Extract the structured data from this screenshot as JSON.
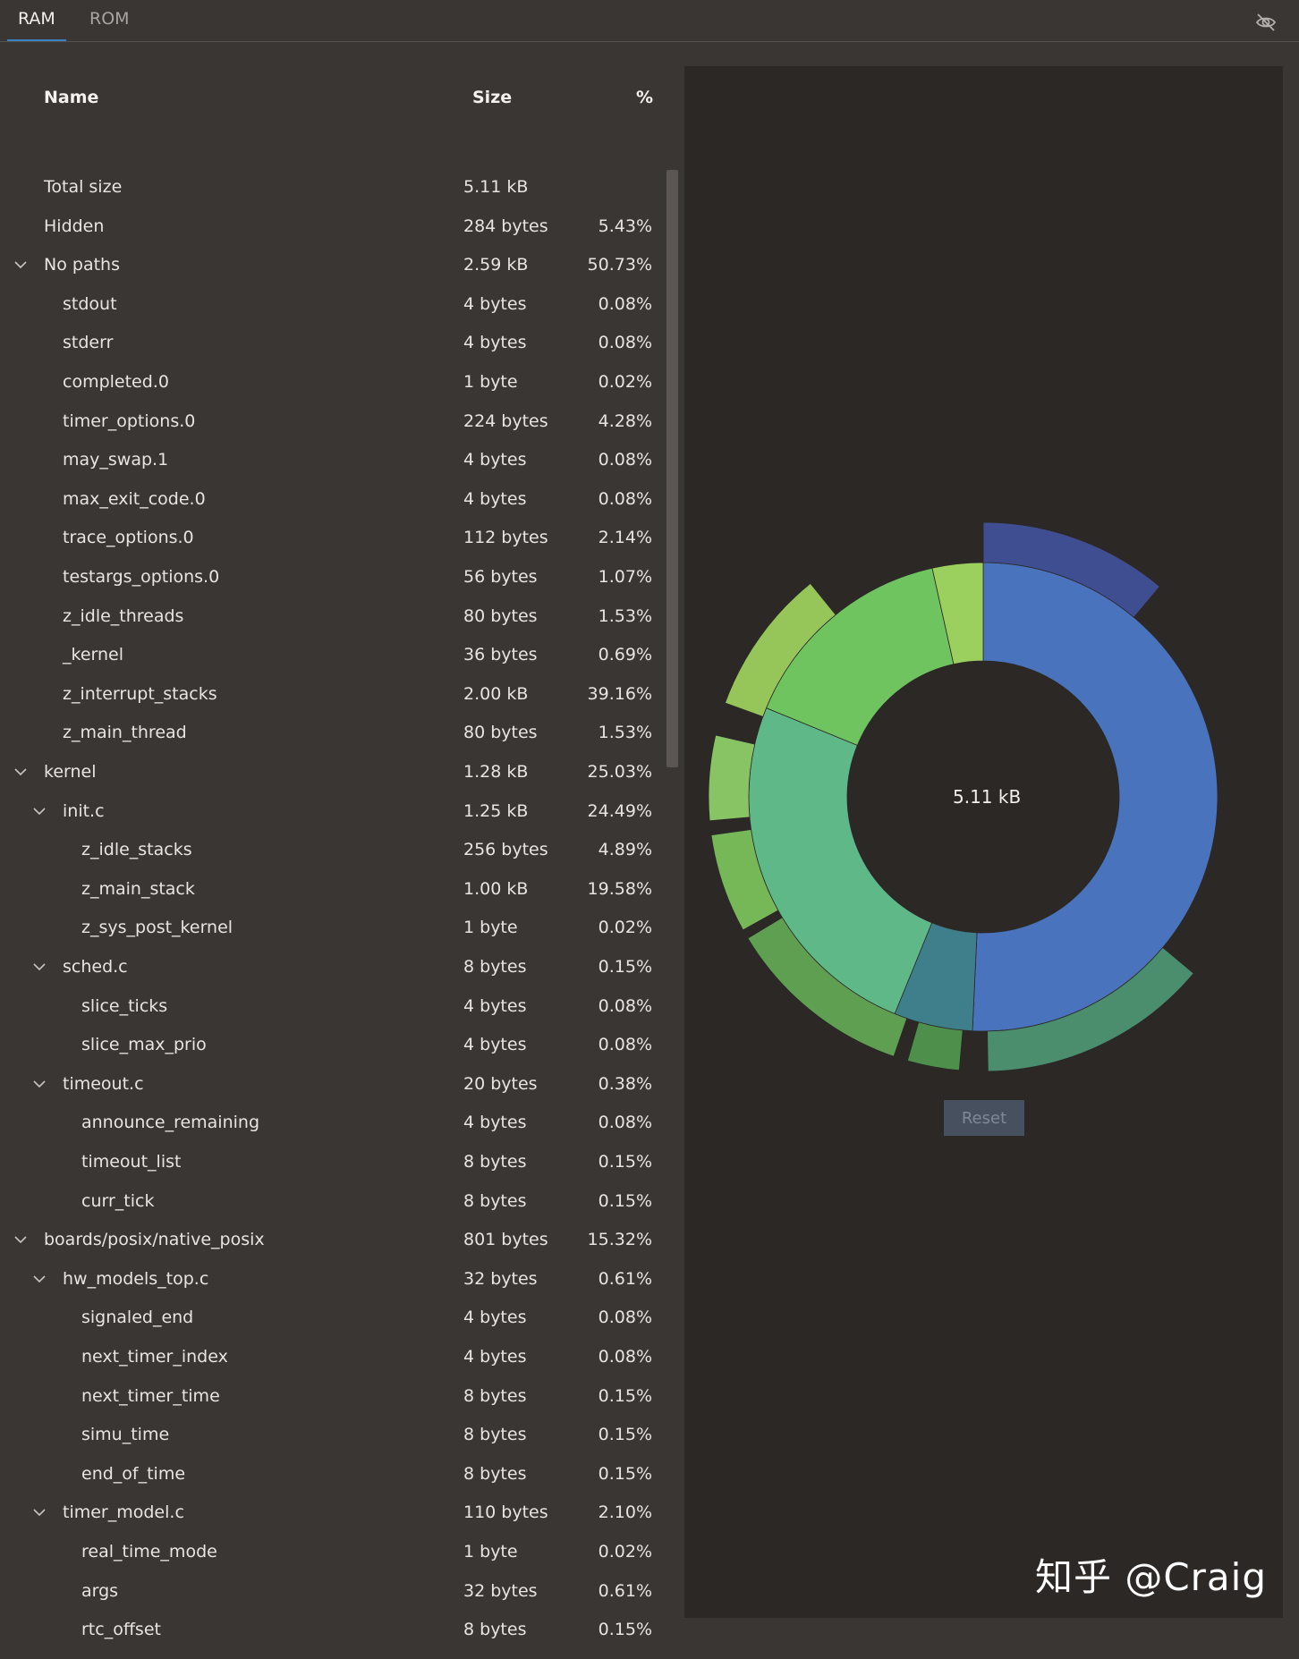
{
  "tabs": [
    {
      "label": "RAM"
    },
    {
      "label": "ROM"
    }
  ],
  "table": {
    "headers": {
      "name": "Name",
      "size": "Size",
      "pct": "%"
    },
    "rows": [
      {
        "name": "Total size",
        "size": "5.11 kB",
        "pct": "",
        "depth": 0,
        "expandable": false
      },
      {
        "name": "Hidden",
        "size": "284 bytes",
        "pct": "5.43%",
        "depth": 0,
        "expandable": false
      },
      {
        "name": "No paths",
        "size": "2.59 kB",
        "pct": "50.73%",
        "depth": 0,
        "expandable": true
      },
      {
        "name": "stdout",
        "size": "4 bytes",
        "pct": "0.08%",
        "depth": 1,
        "expandable": false
      },
      {
        "name": "stderr",
        "size": "4 bytes",
        "pct": "0.08%",
        "depth": 1,
        "expandable": false
      },
      {
        "name": "completed.0",
        "size": "1 byte",
        "pct": "0.02%",
        "depth": 1,
        "expandable": false
      },
      {
        "name": "timer_options.0",
        "size": "224 bytes",
        "pct": "4.28%",
        "depth": 1,
        "expandable": false
      },
      {
        "name": "may_swap.1",
        "size": "4 bytes",
        "pct": "0.08%",
        "depth": 1,
        "expandable": false
      },
      {
        "name": "max_exit_code.0",
        "size": "4 bytes",
        "pct": "0.08%",
        "depth": 1,
        "expandable": false
      },
      {
        "name": "trace_options.0",
        "size": "112 bytes",
        "pct": "2.14%",
        "depth": 1,
        "expandable": false
      },
      {
        "name": "testargs_options.0",
        "size": "56 bytes",
        "pct": "1.07%",
        "depth": 1,
        "expandable": false
      },
      {
        "name": "z_idle_threads",
        "size": "80 bytes",
        "pct": "1.53%",
        "depth": 1,
        "expandable": false
      },
      {
        "name": "_kernel",
        "size": "36 bytes",
        "pct": "0.69%",
        "depth": 1,
        "expandable": false
      },
      {
        "name": "z_interrupt_stacks",
        "size": "2.00 kB",
        "pct": "39.16%",
        "depth": 1,
        "expandable": false
      },
      {
        "name": "z_main_thread",
        "size": "80 bytes",
        "pct": "1.53%",
        "depth": 1,
        "expandable": false
      },
      {
        "name": "kernel",
        "size": "1.28 kB",
        "pct": "25.03%",
        "depth": 0,
        "expandable": true
      },
      {
        "name": "init.c",
        "size": "1.25 kB",
        "pct": "24.49%",
        "depth": 1,
        "expandable": true
      },
      {
        "name": "z_idle_stacks",
        "size": "256 bytes",
        "pct": "4.89%",
        "depth": 2,
        "expandable": false
      },
      {
        "name": "z_main_stack",
        "size": "1.00 kB",
        "pct": "19.58%",
        "depth": 2,
        "expandable": false
      },
      {
        "name": "z_sys_post_kernel",
        "size": "1 byte",
        "pct": "0.02%",
        "depth": 2,
        "expandable": false
      },
      {
        "name": "sched.c",
        "size": "8 bytes",
        "pct": "0.15%",
        "depth": 1,
        "expandable": true
      },
      {
        "name": "slice_ticks",
        "size": "4 bytes",
        "pct": "0.08%",
        "depth": 2,
        "expandable": false
      },
      {
        "name": "slice_max_prio",
        "size": "4 bytes",
        "pct": "0.08%",
        "depth": 2,
        "expandable": false
      },
      {
        "name": "timeout.c",
        "size": "20 bytes",
        "pct": "0.38%",
        "depth": 1,
        "expandable": true
      },
      {
        "name": "announce_remaining",
        "size": "4 bytes",
        "pct": "0.08%",
        "depth": 2,
        "expandable": false
      },
      {
        "name": "timeout_list",
        "size": "8 bytes",
        "pct": "0.15%",
        "depth": 2,
        "expandable": false
      },
      {
        "name": "curr_tick",
        "size": "8 bytes",
        "pct": "0.15%",
        "depth": 2,
        "expandable": false
      },
      {
        "name": "boards/posix/native_posix",
        "size": "801 bytes",
        "pct": "15.32%",
        "depth": 0,
        "expandable": true
      },
      {
        "name": "hw_models_top.c",
        "size": "32 bytes",
        "pct": "0.61%",
        "depth": 1,
        "expandable": true
      },
      {
        "name": "signaled_end",
        "size": "4 bytes",
        "pct": "0.08%",
        "depth": 2,
        "expandable": false
      },
      {
        "name": "next_timer_index",
        "size": "4 bytes",
        "pct": "0.08%",
        "depth": 2,
        "expandable": false
      },
      {
        "name": "next_timer_time",
        "size": "8 bytes",
        "pct": "0.15%",
        "depth": 2,
        "expandable": false
      },
      {
        "name": "simu_time",
        "size": "8 bytes",
        "pct": "0.15%",
        "depth": 2,
        "expandable": false
      },
      {
        "name": "end_of_time",
        "size": "8 bytes",
        "pct": "0.15%",
        "depth": 2,
        "expandable": false
      },
      {
        "name": "timer_model.c",
        "size": "110 bytes",
        "pct": "2.10%",
        "depth": 1,
        "expandable": true
      },
      {
        "name": "real_time_mode",
        "size": "1 byte",
        "pct": "0.02%",
        "depth": 2,
        "expandable": false
      },
      {
        "name": "args",
        "size": "32 bytes",
        "pct": "0.61%",
        "depth": 2,
        "expandable": false
      },
      {
        "name": "rtc_offset",
        "size": "8 bytes",
        "pct": "0.15%",
        "depth": 2,
        "expandable": false
      }
    ]
  },
  "chart": {
    "center_label": "5.11 kB",
    "reset_label": "Reset"
  },
  "chart_data": {
    "type": "sunburst",
    "inner": [
      {
        "pct": 50.73,
        "color": "#4a73bd"
      },
      {
        "pct": 5.43,
        "color": "#3f7f8c"
      },
      {
        "pct": 25.03,
        "color": "#5fb888"
      },
      {
        "pct": 15.32,
        "color": "#6fc460"
      },
      {
        "pct": 3.49,
        "color": "#9cd05e"
      }
    ],
    "outer": [
      {
        "start": 0,
        "end": 40,
        "color": "#3f4e90"
      },
      {
        "start": 130,
        "end": 179,
        "color": "#4b8e6e"
      },
      {
        "start": 185,
        "end": 196,
        "color": "#4f8f4c"
      },
      {
        "start": 199,
        "end": 239,
        "color": "#5f9f52"
      },
      {
        "start": 241,
        "end": 262,
        "color": "#76b857"
      },
      {
        "start": 265,
        "end": 283,
        "color": "#88c463"
      },
      {
        "start": 290,
        "end": 321,
        "color": "#96c65a"
      }
    ]
  },
  "watermark": "知乎 @Craig",
  "colors": {
    "accent": "#3b82c4",
    "panel": "#2b2826",
    "background": "#3a3634"
  }
}
